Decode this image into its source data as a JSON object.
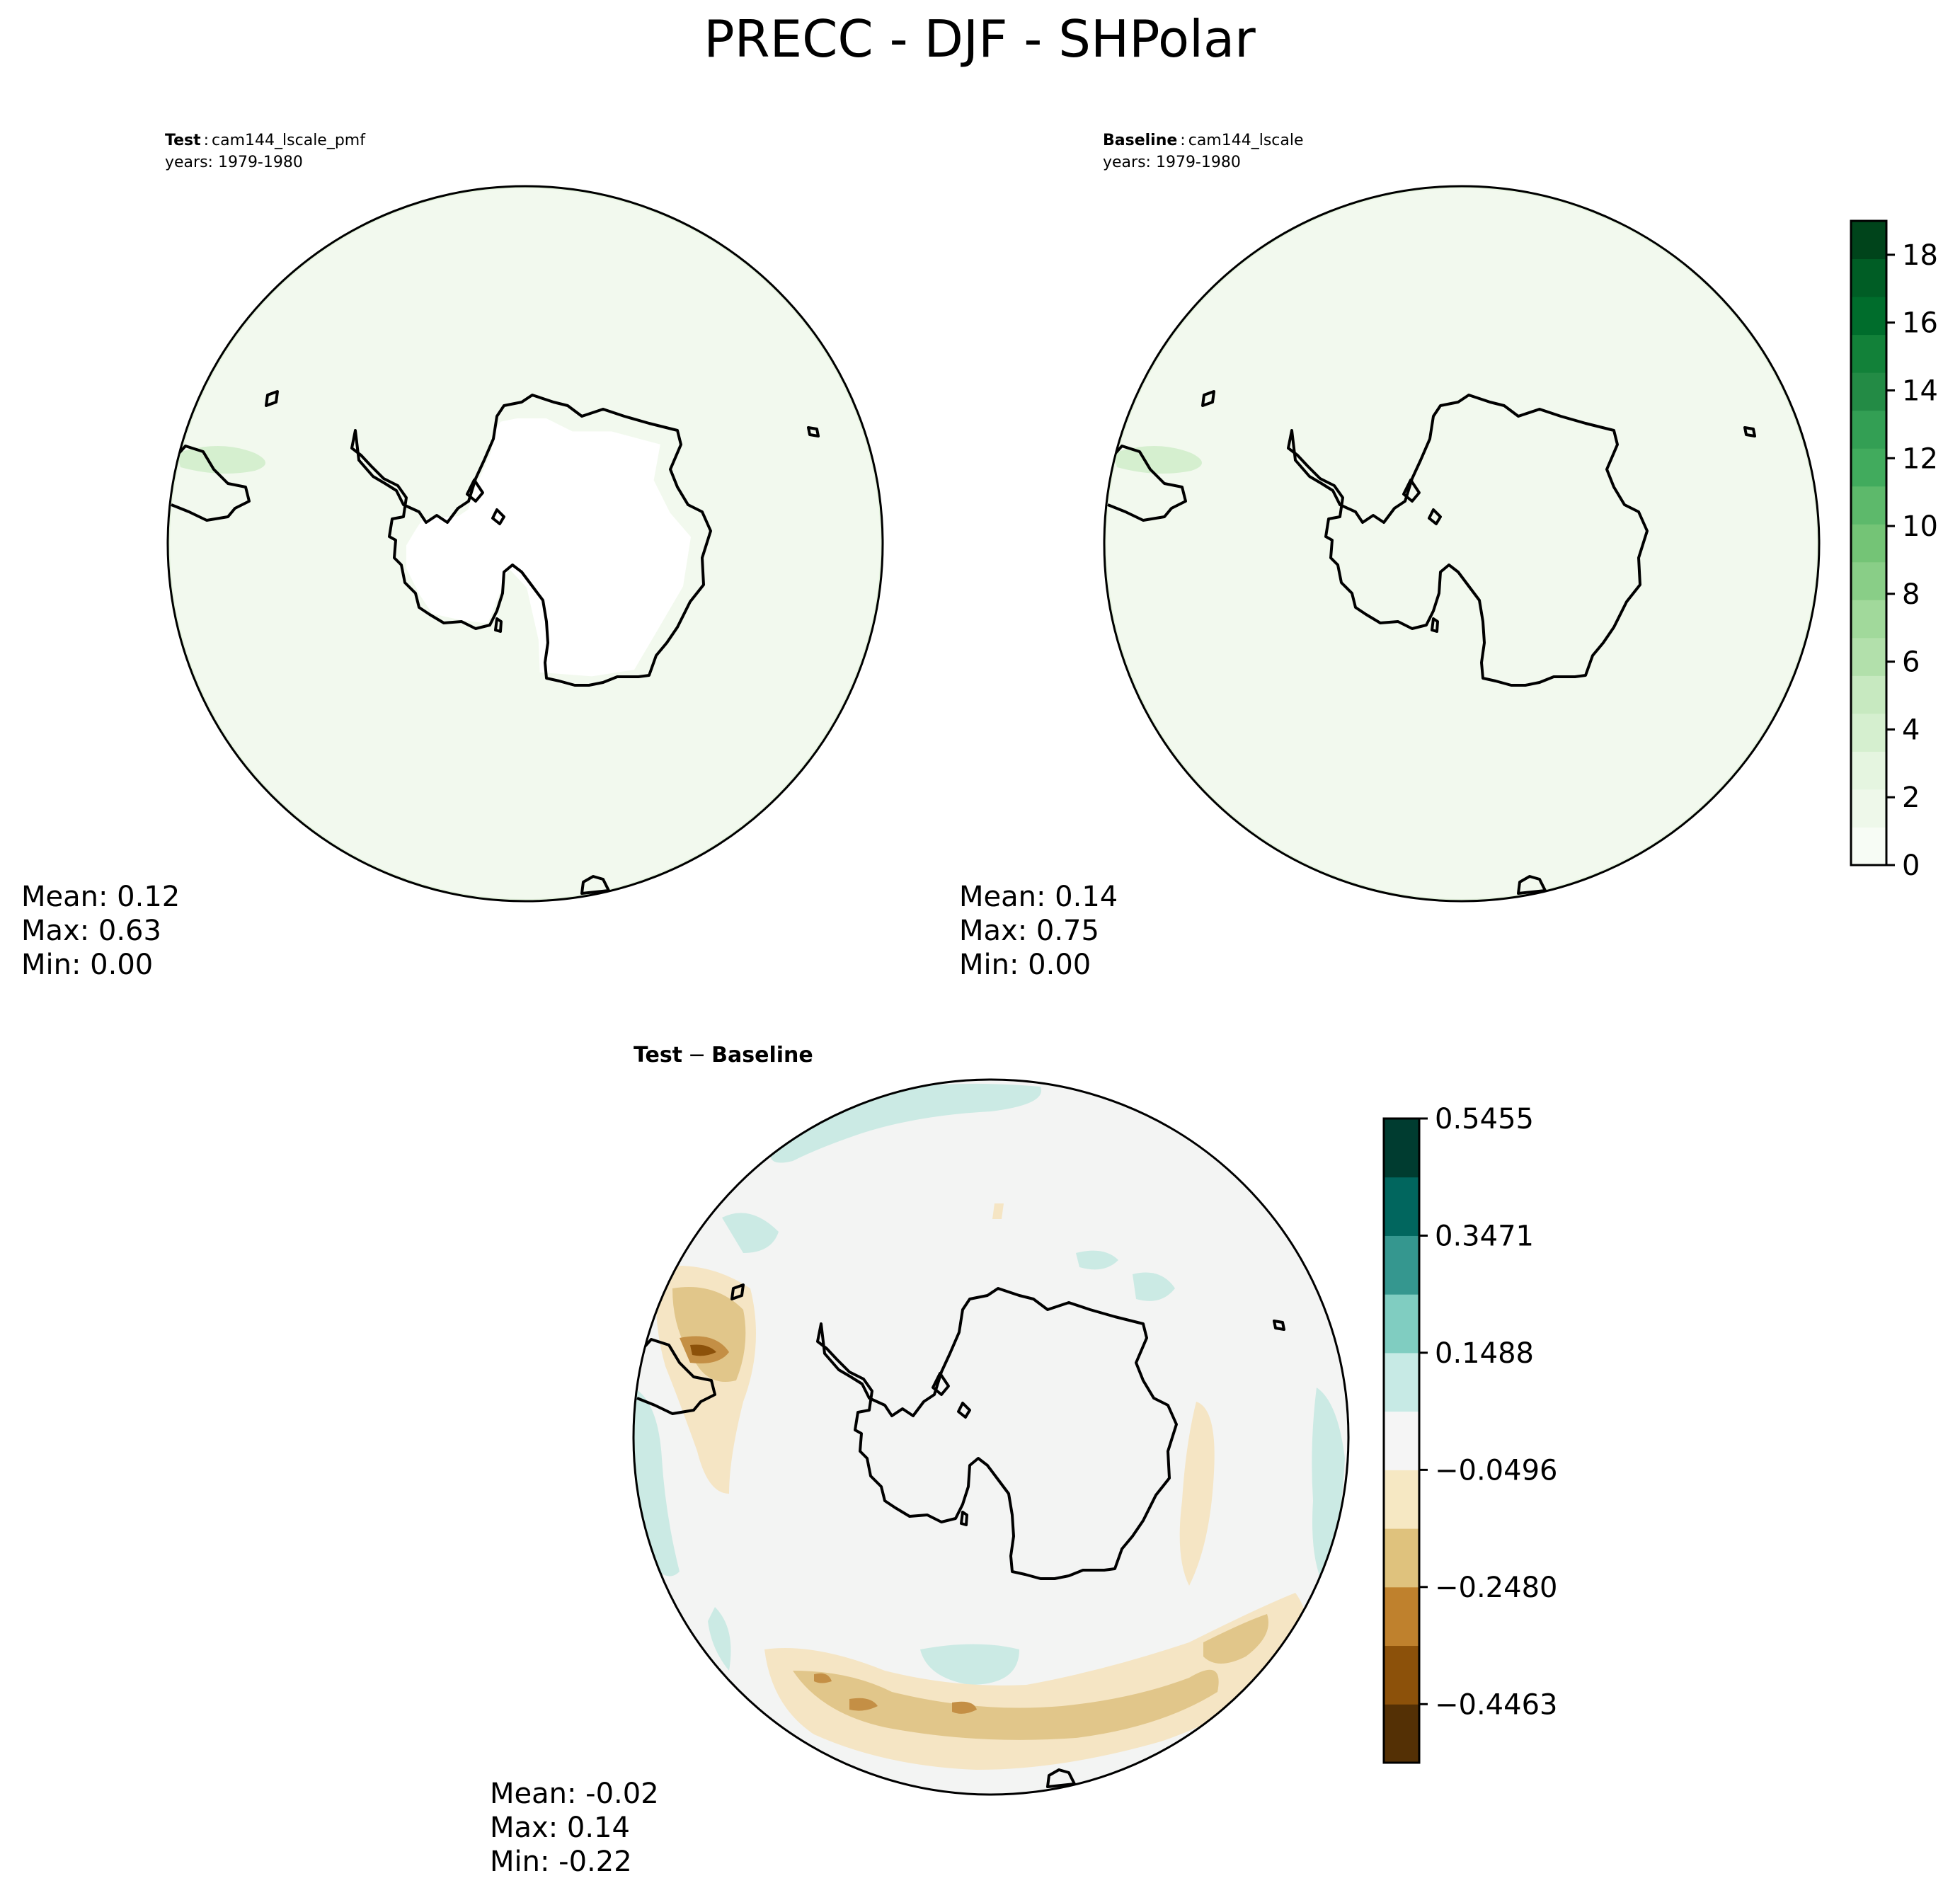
{
  "figure_title": "PRECC - DJF - SHPolar",
  "panels": {
    "test": {
      "label_bold": "Test",
      "label_name": "cam144_lscale_pmf",
      "years": "years: 1979-1980",
      "stats": {
        "mean": "Mean:  0.12",
        "max": "Max:  0.63",
        "min": "Min:  0.00"
      }
    },
    "baseline": {
      "label_bold": "Baseline",
      "label_name": "cam144_lscale",
      "years": "years: 1979-1980",
      "stats": {
        "mean": "Mean:  0.14",
        "max": "Max:  0.75",
        "min": "Min:  0.00"
      }
    },
    "diff": {
      "title_a": "Test",
      "title_op": "−",
      "title_b": "Baseline",
      "stats": {
        "mean": "Mean: -0.02",
        "max": "Max:  0.14",
        "min": "Min: -0.22"
      }
    }
  },
  "colorbars": {
    "main": {
      "ticks": [
        "0",
        "2",
        "4",
        "6",
        "8",
        "10",
        "12",
        "14",
        "16",
        "18"
      ],
      "range": [
        0,
        19
      ],
      "colors": [
        "#f7fcf5",
        "#eef8ea",
        "#e5f5e0",
        "#d5efcf",
        "#c7e9c0",
        "#b2e0ab",
        "#a1d99b",
        "#89ce87",
        "#74c476",
        "#5db96b",
        "#41ab5d",
        "#339f54",
        "#238b45",
        "#128139",
        "#006d2c",
        "#005d25",
        "#00441b"
      ]
    },
    "diff": {
      "ticks": [
        "0.5455",
        "0.3471",
        "0.1488",
        "−0.0496",
        "−0.2480",
        "−0.4463"
      ],
      "colors": [
        "#543005",
        "#8c510a",
        "#bf812d",
        "#dfc27d",
        "#f6e8c3",
        "#f5f5f5",
        "#c7eae5",
        "#80cdc1",
        "#35978f",
        "#01665e",
        "#003c30"
      ]
    }
  },
  "map_colors": {
    "field_low": "#f2f9ee",
    "field_edge": "#e3f2dc",
    "neutral": "#f3f4f3",
    "tan": "#f5e5c4",
    "gold": "#e1c68a",
    "brown": "#c48f45",
    "dark": "#8c510a",
    "teal": "#cbeae4"
  }
}
